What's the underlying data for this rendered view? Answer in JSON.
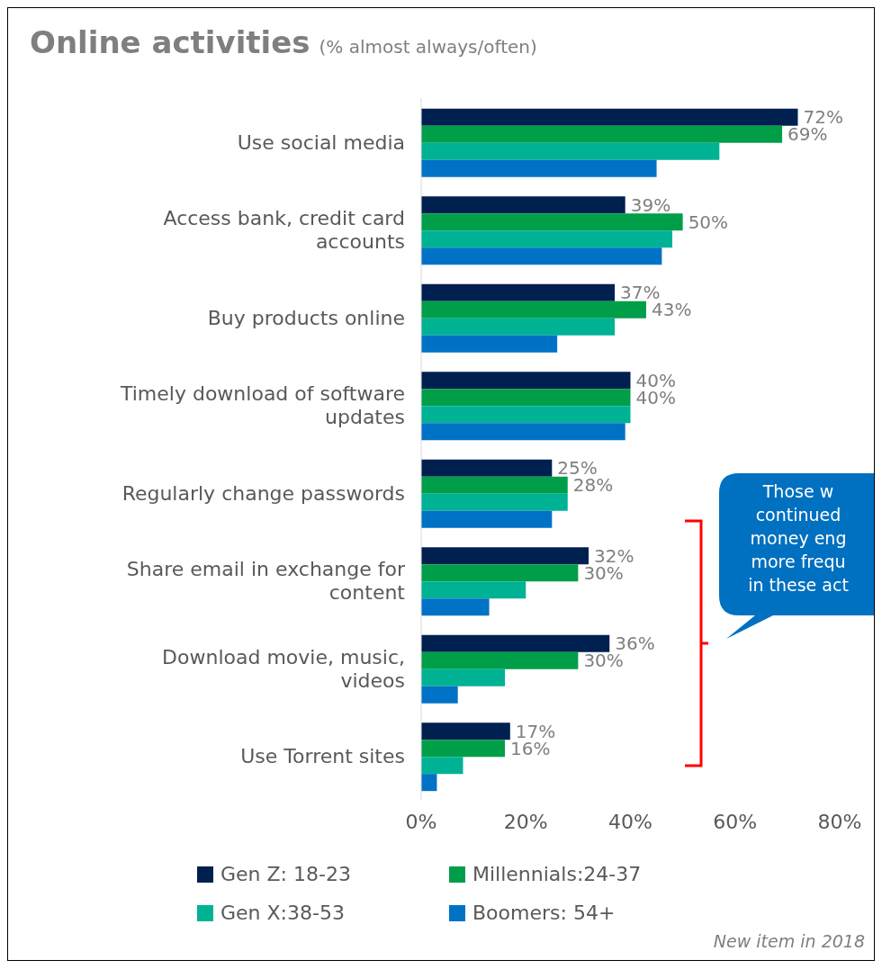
{
  "chart_data": {
    "type": "bar",
    "orientation": "horizontal",
    "title": "Online activities",
    "subtitle": "(% almost always/often)",
    "categories": [
      "Use social media",
      "Access bank, credit card accounts",
      "Buy products online",
      "Timely download of software updates",
      "Regularly change passwords",
      "Share email in exchange for content",
      "Download movie, music, videos",
      "Use Torrent sites"
    ],
    "series": [
      {
        "name": "Gen Z: 18-23",
        "color": "#002050",
        "values": [
          72,
          39,
          37,
          40,
          25,
          32,
          36,
          17
        ],
        "value_labels": [
          "72%",
          "39%",
          "37%",
          "40%",
          "25%",
          "32%",
          "36%",
          "17%"
        ]
      },
      {
        "name": "Millennials:24-37",
        "color": "#009e49",
        "values": [
          69,
          50,
          43,
          40,
          28,
          30,
          30,
          16
        ],
        "value_labels": [
          "69%",
          "50%",
          "43%",
          "40%",
          "28%",
          "30%",
          "30%",
          "16%"
        ]
      },
      {
        "name": "Gen X:38-53",
        "color": "#00b294",
        "values": [
          57,
          48,
          37,
          40,
          28,
          20,
          16,
          8
        ]
      },
      {
        "name": "Boomers: 54+",
        "color": "#0072c6",
        "values": [
          45,
          46,
          26,
          39,
          25,
          13,
          7,
          3
        ]
      }
    ],
    "xlim": [
      0,
      80
    ],
    "xticks": [
      {
        "value": 0,
        "label": "0%"
      },
      {
        "value": 20,
        "label": "20%"
      },
      {
        "value": 40,
        "label": "40%"
      },
      {
        "value": 60,
        "label": "60%"
      },
      {
        "value": 80,
        "label": "80%"
      }
    ],
    "grid": false,
    "legend": "bottom",
    "annotations": [
      "Those w\ncontinued\nmoney eng\nmore frequ\nin these act",
      "New item in 2018"
    ]
  }
}
